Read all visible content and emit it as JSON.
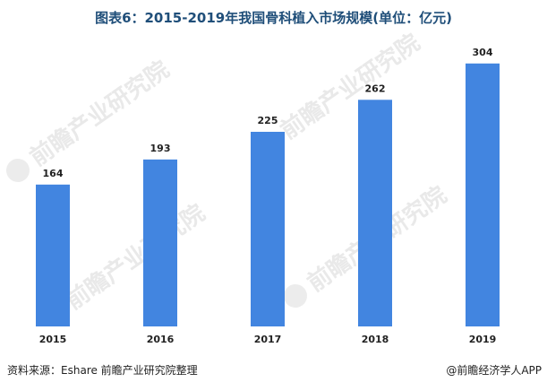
{
  "title": "图表6：2015-2019年我国骨科植入市场规模(单位：亿元)",
  "source": "资料来源：Eshare 前瞻产业研究院整理",
  "credit": "@前瞻经济学人APP",
  "watermark_text": "前瞻产业研究院",
  "colors": {
    "bar": "#4285e0",
    "title": "#1f4e79",
    "watermark": "#e9e9e9"
  },
  "chart_data": {
    "type": "bar",
    "categories": [
      "2015",
      "2016",
      "2017",
      "2018",
      "2019"
    ],
    "values": [
      164,
      193,
      225,
      262,
      304
    ],
    "title": "图表6：2015-2019年我国骨科植入市场规模(单位：亿元)",
    "xlabel": "",
    "ylabel": "",
    "ylim": [
      0,
      310
    ],
    "grid": false,
    "legend": "none",
    "data_labels": true
  }
}
